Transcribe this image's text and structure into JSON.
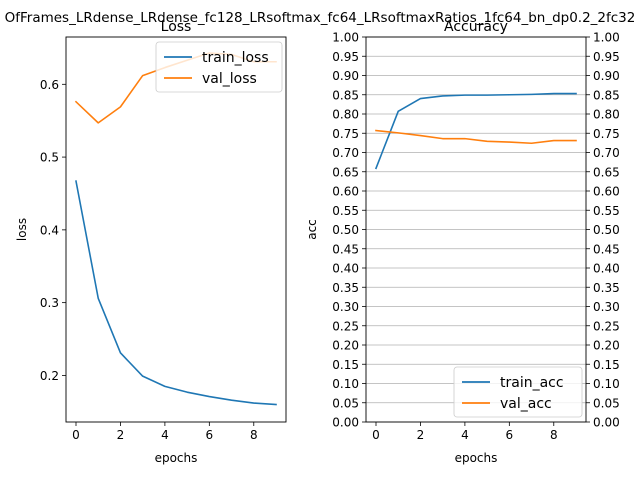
{
  "figure": {
    "suptitle": "OfFrames_LRdense_LRdense_fc128_LRsoftmax_fc64_LRsoftmaxRatios_1fc64_bn_dp0.2_2fc32"
  },
  "chart_data": [
    {
      "type": "line",
      "title": "Loss",
      "xlabel": "epochs",
      "ylabel": "loss",
      "xlim": [
        -0.45,
        9.45
      ],
      "ylim": [
        0.136,
        0.665
      ],
      "xticks": [
        0,
        2,
        4,
        6,
        8
      ],
      "yticks": [
        0.2,
        0.3,
        0.4,
        0.5,
        0.6
      ],
      "ytick_format": 1,
      "grid": false,
      "legend_position": "upper-right",
      "x": [
        0,
        1,
        2,
        3,
        4,
        5,
        6,
        7,
        8,
        9
      ],
      "series": [
        {
          "name": "train_loss",
          "color": "#1f77b4",
          "values": [
            0.467,
            0.306,
            0.231,
            0.199,
            0.185,
            0.177,
            0.171,
            0.166,
            0.162,
            0.16
          ]
        },
        {
          "name": "val_loss",
          "color": "#ff7f0e",
          "values": [
            0.576,
            0.547,
            0.569,
            0.612,
            0.623,
            0.633,
            0.643,
            0.641,
            0.631,
            0.631
          ]
        }
      ]
    },
    {
      "type": "line",
      "title": "Accuracy",
      "xlabel": "epochs",
      "ylabel": "acc",
      "xlim": [
        -0.45,
        9.45
      ],
      "ylim": [
        0,
        1
      ],
      "xticks": [
        0,
        2,
        4,
        6,
        8
      ],
      "yticks": [
        0.0,
        0.05,
        0.1,
        0.15,
        0.2,
        0.25,
        0.3,
        0.35,
        0.4,
        0.45,
        0.5,
        0.55,
        0.6,
        0.65,
        0.7,
        0.75,
        0.8,
        0.85,
        0.9,
        0.95,
        1.0
      ],
      "ytick_format": 2,
      "grid": true,
      "right_axis_mirror": true,
      "legend_position": "lower-right",
      "x": [
        0,
        1,
        2,
        3,
        4,
        5,
        6,
        7,
        8,
        9
      ],
      "series": [
        {
          "name": "train_acc",
          "color": "#1f77b4",
          "values": [
            0.659,
            0.807,
            0.84,
            0.847,
            0.849,
            0.849,
            0.85,
            0.851,
            0.853,
            0.853
          ]
        },
        {
          "name": "val_acc",
          "color": "#ff7f0e",
          "values": [
            0.757,
            0.751,
            0.744,
            0.736,
            0.736,
            0.729,
            0.727,
            0.724,
            0.731,
            0.731
          ]
        }
      ]
    }
  ]
}
